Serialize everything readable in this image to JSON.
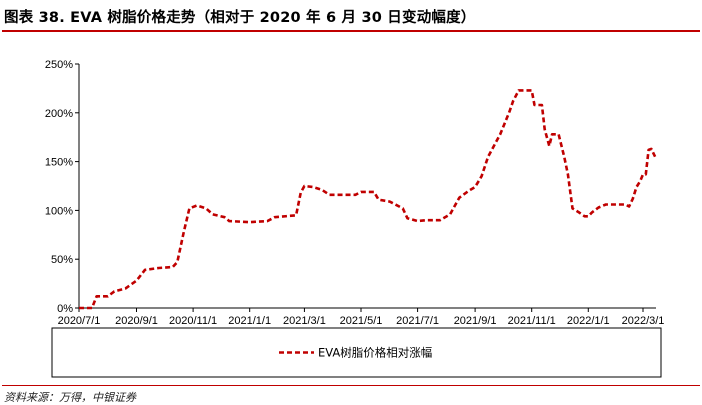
{
  "header": {
    "title": "图表 38. EVA 树脂价格走势（相对于 2020 年 6 月 30 日变动幅度）"
  },
  "footer": {
    "source": "资料来源：万得，中银证券"
  },
  "colors": {
    "accent": "#c00000",
    "series": "#c00000",
    "axis": "#000000"
  },
  "chart_data": {
    "type": "line",
    "title": "",
    "xlabel": "",
    "ylabel": "",
    "ylim": [
      0,
      250
    ],
    "y_ticks": [
      "0%",
      "50%",
      "100%",
      "150%",
      "200%",
      "250%"
    ],
    "y_tick_values": [
      0,
      50,
      100,
      150,
      200,
      250
    ],
    "x_ticks": [
      "2020/7/1",
      "2020/9/1",
      "2020/11/1",
      "2021/1/1",
      "2021/3/1",
      "2021/5/1",
      "2021/7/1",
      "2021/9/1",
      "2021/11/1",
      "2022/1/1",
      "2022/3/1"
    ],
    "xlim": [
      "2020/7/1",
      "2022/3/15"
    ],
    "grid": false,
    "legend_position": "bottom",
    "series": [
      {
        "name": "EVA树脂价格相对涨幅",
        "line_style": "dashed",
        "points": [
          [
            "2020/7/1",
            0
          ],
          [
            "2020/7/15",
            0
          ],
          [
            "2020/7/20",
            12
          ],
          [
            "2020/8/1",
            12
          ],
          [
            "2020/8/8",
            17
          ],
          [
            "2020/8/20",
            20
          ],
          [
            "2020/9/1",
            28
          ],
          [
            "2020/9/10",
            39
          ],
          [
            "2020/9/25",
            41
          ],
          [
            "2020/10/10",
            42
          ],
          [
            "2020/10/15",
            47
          ],
          [
            "2020/10/22",
            78
          ],
          [
            "2020/10/28",
            102
          ],
          [
            "2020/11/5",
            105
          ],
          [
            "2020/11/15",
            102
          ],
          [
            "2020/11/22",
            96
          ],
          [
            "2020/12/5",
            93
          ],
          [
            "2020/12/10",
            89
          ],
          [
            "2021/1/1",
            88
          ],
          [
            "2021/1/20",
            89
          ],
          [
            "2021/1/28",
            93
          ],
          [
            "2021/2/20",
            95
          ],
          [
            "2021/2/25",
            118
          ],
          [
            "2021/3/1",
            125
          ],
          [
            "2021/3/10",
            124
          ],
          [
            "2021/3/20",
            121
          ],
          [
            "2021/3/28",
            116
          ],
          [
            "2021/4/25",
            116
          ],
          [
            "2021/5/1",
            119
          ],
          [
            "2021/5/15",
            119
          ],
          [
            "2021/5/20",
            111
          ],
          [
            "2021/6/1",
            109
          ],
          [
            "2021/6/15",
            102
          ],
          [
            "2021/6/20",
            92
          ],
          [
            "2021/7/1",
            89
          ],
          [
            "2021/7/10",
            90
          ],
          [
            "2021/7/25",
            90
          ],
          [
            "2021/8/5",
            96
          ],
          [
            "2021/8/15",
            113
          ],
          [
            "2021/8/25",
            120
          ],
          [
            "2021/9/1",
            124
          ],
          [
            "2021/9/8",
            135
          ],
          [
            "2021/9/15",
            155
          ],
          [
            "2021/9/28",
            178
          ],
          [
            "2021/10/8",
            201
          ],
          [
            "2021/10/12",
            212
          ],
          [
            "2021/10/18",
            223
          ],
          [
            "2021/11/1",
            223
          ],
          [
            "2021/11/4",
            208
          ],
          [
            "2021/11/12",
            208
          ],
          [
            "2021/11/15",
            183
          ],
          [
            "2021/11/20",
            166
          ],
          [
            "2021/11/23",
            178
          ],
          [
            "2021/11/30",
            178
          ],
          [
            "2021/12/6",
            155
          ],
          [
            "2021/12/10",
            137
          ],
          [
            "2021/12/15",
            102
          ],
          [
            "2021/12/22",
            98
          ],
          [
            "2021/12/28",
            94
          ],
          [
            "2022/1/1",
            94
          ],
          [
            "2022/1/5",
            98
          ],
          [
            "2022/1/12",
            103
          ],
          [
            "2022/1/20",
            106
          ],
          [
            "2022/2/10",
            106
          ],
          [
            "2022/2/14",
            104
          ],
          [
            "2022/2/18",
            112
          ],
          [
            "2022/2/22",
            124
          ],
          [
            "2022/2/26",
            130
          ],
          [
            "2022/3/1",
            137
          ],
          [
            "2022/3/4",
            137
          ],
          [
            "2022/3/7",
            162
          ],
          [
            "2022/3/10",
            163
          ],
          [
            "2022/3/12",
            159
          ],
          [
            "2022/3/14",
            155
          ]
        ]
      }
    ]
  }
}
